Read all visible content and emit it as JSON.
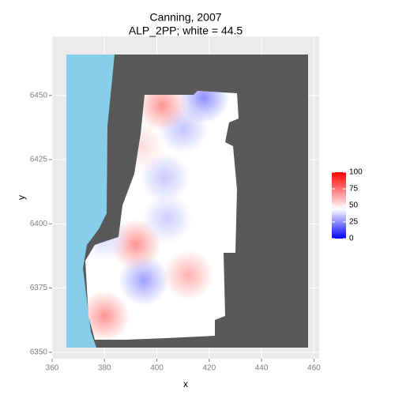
{
  "chart_data": {
    "type": "raster",
    "title": "Canning, 2007",
    "subtitle": "ALP_2PP; white = 44.5",
    "xlabel": "x",
    "ylabel": "y",
    "xlim": [
      360,
      462
    ],
    "ylim": [
      6347.5,
      6473
    ],
    "xticks": [
      360,
      380,
      400,
      420,
      440,
      460
    ],
    "yticks": [
      6350,
      6375,
      6400,
      6425,
      6450
    ],
    "grid": true,
    "colors": {
      "low": "#0000ff",
      "mid": "#ffffff",
      "high": "#ff0000",
      "midpoint": 44.5,
      "ocean": "#87ceeb",
      "land": "#595959"
    },
    "legend": {
      "lim": [
        0,
        100
      ],
      "ticks": [
        0,
        25,
        50,
        75,
        100
      ],
      "position": "right"
    },
    "spots": [
      {
        "x": 395,
        "y": 6378,
        "value": 28
      },
      {
        "x": 412,
        "y": 6380,
        "value": 62
      },
      {
        "x": 392,
        "y": 6392,
        "value": 68
      },
      {
        "x": 403,
        "y": 6418,
        "value": 35
      },
      {
        "x": 404,
        "y": 6402,
        "value": 36
      },
      {
        "x": 410,
        "y": 6437,
        "value": 34
      },
      {
        "x": 418,
        "y": 6449,
        "value": 25
      },
      {
        "x": 380,
        "y": 6364,
        "value": 68
      },
      {
        "x": 402,
        "y": 6446,
        "value": 68
      },
      {
        "x": 394,
        "y": 6430,
        "value": 52
      },
      {
        "x": 380,
        "y": 6395,
        "value": 38
      }
    ]
  }
}
